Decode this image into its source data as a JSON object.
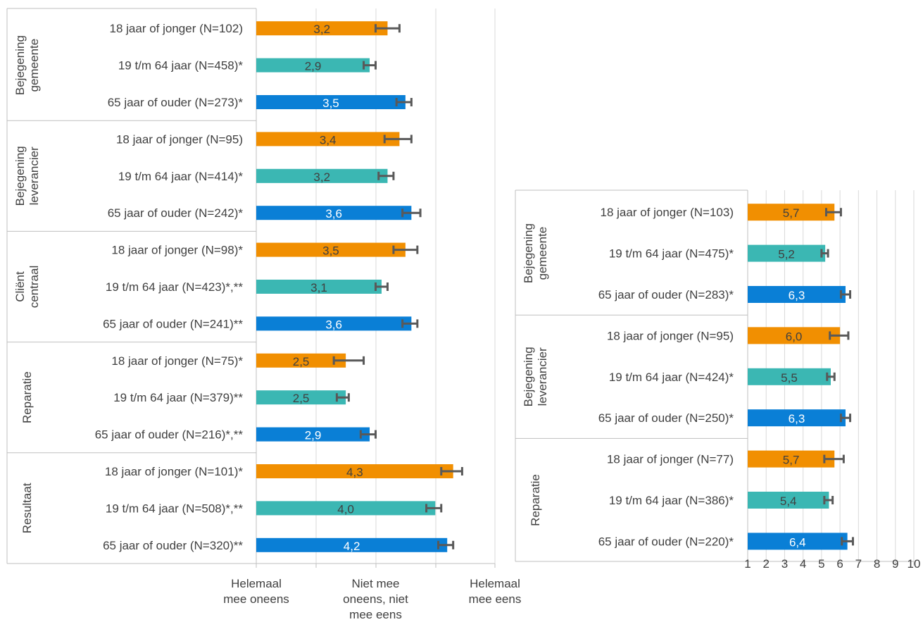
{
  "colors": {
    "young": "#F18F01",
    "mid": "#3BB7B3",
    "old": "#0A7FD6",
    "errorbar": "#595959",
    "grid": "#D9D9D9",
    "frame": "#BFBFBF"
  },
  "chart_data": [
    {
      "type": "bar",
      "orientation": "horizontal",
      "xlim": [
        1,
        5
      ],
      "x_tick_labels": [
        {
          "value": 1,
          "lines": [
            "Helemaal",
            "mee oneens"
          ]
        },
        {
          "value": 3,
          "lines": [
            "Niet mee",
            "oneens, niet",
            "mee eens"
          ]
        },
        {
          "value": 5,
          "lines": [
            "Helemaal",
            "mee eens"
          ]
        }
      ],
      "grid": true,
      "groups": [
        {
          "name": [
            "Bejegening",
            "gemeente"
          ],
          "rows": [
            {
              "label": "18 jaar of jonger (N=102)",
              "age": "young",
              "value": 3.2,
              "value_label": "3,2",
              "err_low": 3.0,
              "err_high": 3.4
            },
            {
              "label": "19 t/m 64 jaar (N=458)*",
              "age": "mid",
              "value": 2.9,
              "value_label": "2,9",
              "err_low": 2.8,
              "err_high": 3.0
            },
            {
              "label": "65 jaar of ouder (N=273)*",
              "age": "old",
              "value": 3.5,
              "value_label": "3,5",
              "err_low": 3.35,
              "err_high": 3.6
            }
          ]
        },
        {
          "name": [
            "Bejegening",
            "leverancier"
          ],
          "rows": [
            {
              "label": "18 jaar of jonger (N=95)",
              "age": "young",
              "value": 3.4,
              "value_label": "3,4",
              "err_low": 3.15,
              "err_high": 3.6
            },
            {
              "label": "19 t/m 64 jaar (N=414)*",
              "age": "mid",
              "value": 3.2,
              "value_label": "3,2",
              "err_low": 3.05,
              "err_high": 3.3
            },
            {
              "label": "65 jaar of ouder (N=242)*",
              "age": "old",
              "value": 3.6,
              "value_label": "3,6",
              "err_low": 3.45,
              "err_high": 3.75
            }
          ]
        },
        {
          "name": [
            "Cliënt",
            "centraal"
          ],
          "rows": [
            {
              "label": "18 jaar of jonger (N=98)*",
              "age": "young",
              "value": 3.5,
              "value_label": "3,5",
              "err_low": 3.3,
              "err_high": 3.7
            },
            {
              "label": "19 t/m 64 jaar (N=423)*,**",
              "age": "mid",
              "value": 3.1,
              "value_label": "3,1",
              "err_low": 3.0,
              "err_high": 3.2
            },
            {
              "label": "65 jaar of ouder (N=241)**",
              "age": "old",
              "value": 3.6,
              "value_label": "3,6",
              "err_low": 3.45,
              "err_high": 3.7
            }
          ]
        },
        {
          "name": [
            "Reparatie"
          ],
          "rows": [
            {
              "label": "18 jaar of jonger (N=75)*",
              "age": "young",
              "value": 2.5,
              "value_label": "2,5",
              "err_low": 2.3,
              "err_high": 2.8
            },
            {
              "label": "19 t/m 64 jaar (N=379)**",
              "age": "mid",
              "value": 2.5,
              "value_label": "2,5",
              "err_low": 2.35,
              "err_high": 2.55
            },
            {
              "label": "65 jaar of ouder (N=216)*,**",
              "age": "old",
              "value": 2.9,
              "value_label": "2,9",
              "err_low": 2.75,
              "err_high": 3.0
            }
          ]
        },
        {
          "name": [
            "Resultaat"
          ],
          "rows": [
            {
              "label": "18 jaar of jonger (N=101)*",
              "age": "young",
              "value": 4.3,
              "value_label": "4,3",
              "err_low": 4.1,
              "err_high": 4.45
            },
            {
              "label": "19 t/m 64 jaar (N=508)*,**",
              "age": "mid",
              "value": 4.0,
              "value_label": "4,0",
              "err_low": 3.85,
              "err_high": 4.1
            },
            {
              "label": "65 jaar of ouder (N=320)**",
              "age": "old",
              "value": 4.2,
              "value_label": "4,2",
              "err_low": 4.05,
              "err_high": 4.3
            }
          ]
        }
      ]
    },
    {
      "type": "bar",
      "orientation": "horizontal",
      "xlim": [
        1,
        10
      ],
      "x_tick_labels": [
        {
          "value": 1,
          "lines": [
            "1"
          ]
        },
        {
          "value": 2,
          "lines": [
            "2"
          ]
        },
        {
          "value": 3,
          "lines": [
            "3"
          ]
        },
        {
          "value": 4,
          "lines": [
            "4"
          ]
        },
        {
          "value": 5,
          "lines": [
            "5"
          ]
        },
        {
          "value": 6,
          "lines": [
            "6"
          ]
        },
        {
          "value": 7,
          "lines": [
            "7"
          ]
        },
        {
          "value": 8,
          "lines": [
            "8"
          ]
        },
        {
          "value": 9,
          "lines": [
            "9"
          ]
        },
        {
          "value": 10,
          "lines": [
            "10"
          ]
        }
      ],
      "grid": true,
      "groups": [
        {
          "name": [
            "Bejegening",
            "gemeente"
          ],
          "rows": [
            {
              "label": "18 jaar of jonger (N=103)",
              "age": "young",
              "value": 5.7,
              "value_label": "5,7",
              "err_low": 5.25,
              "err_high": 6.05
            },
            {
              "label": "19 t/m 64 jaar (N=475)*",
              "age": "mid",
              "value": 5.2,
              "value_label": "5,2",
              "err_low": 5.0,
              "err_high": 5.35
            },
            {
              "label": "65 jaar of ouder (N=283)*",
              "age": "old",
              "value": 6.3,
              "value_label": "6,3",
              "err_low": 6.05,
              "err_high": 6.55
            }
          ]
        },
        {
          "name": [
            "Bejegening",
            "leverancier"
          ],
          "rows": [
            {
              "label": "18 jaar of jonger (N=95)",
              "age": "young",
              "value": 6.0,
              "value_label": "6,0",
              "err_low": 5.45,
              "err_high": 6.45
            },
            {
              "label": "19 t/m 64 jaar (N=424)*",
              "age": "mid",
              "value": 5.5,
              "value_label": "5,5",
              "err_low": 5.3,
              "err_high": 5.7
            },
            {
              "label": "65 jaar of ouder (N=250)*",
              "age": "old",
              "value": 6.3,
              "value_label": "6,3",
              "err_low": 6.05,
              "err_high": 6.55
            }
          ]
        },
        {
          "name": [
            "Reparatie"
          ],
          "rows": [
            {
              "label": "18 jaar of jonger (N=77)",
              "age": "young",
              "value": 5.7,
              "value_label": "5,7",
              "err_low": 5.15,
              "err_high": 6.2
            },
            {
              "label": "19 t/m 64 jaar (N=386)*",
              "age": "mid",
              "value": 5.4,
              "value_label": "5,4",
              "err_low": 5.15,
              "err_high": 5.6
            },
            {
              "label": "65 jaar of ouder (N=220)*",
              "age": "old",
              "value": 6.4,
              "value_label": "6,4",
              "err_low": 6.1,
              "err_high": 6.7
            }
          ]
        }
      ]
    }
  ]
}
